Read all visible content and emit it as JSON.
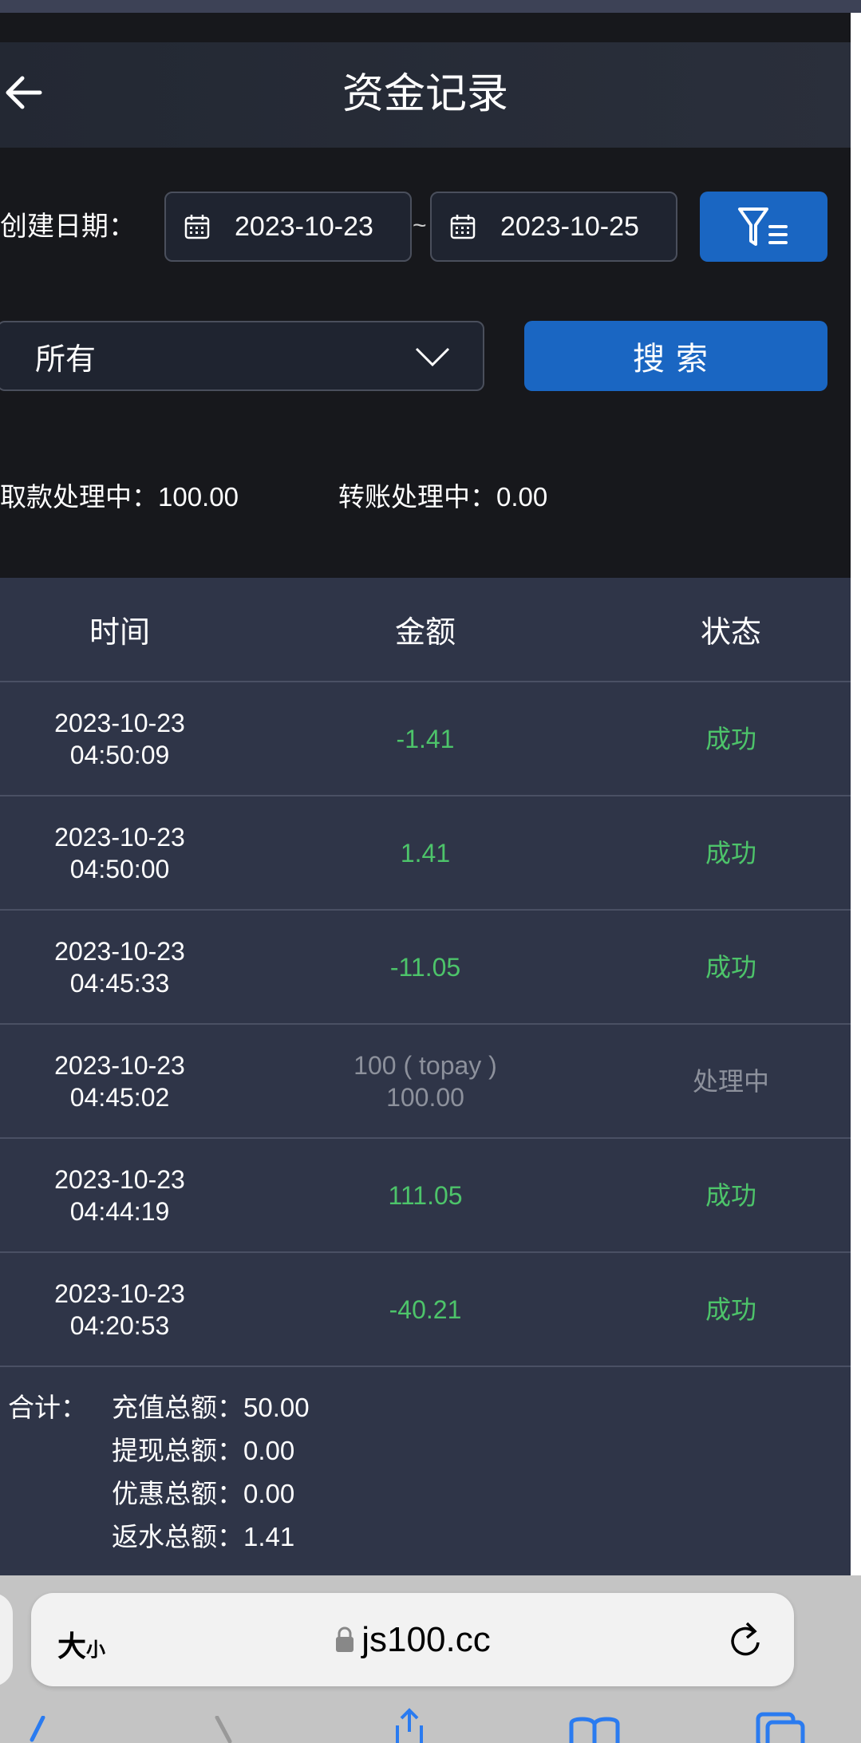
{
  "header": {
    "title": "资金记录",
    "back_icon": "arrow-left-icon"
  },
  "filters": {
    "date_label": "创建日期：",
    "start_date": "2023-10-23",
    "separator": "~",
    "end_date": "2023-10-25",
    "type_select": "所有",
    "search_label": "搜索"
  },
  "summary": {
    "withdraw_label": "取款处理中：",
    "withdraw_value": "100.00",
    "transfer_label": "转账处理中：",
    "transfer_value": "0.00"
  },
  "table": {
    "columns": [
      "时间",
      "金额",
      "状态"
    ],
    "rows": [
      {
        "date": "2023-10-23",
        "time": "04:50:09",
        "amount_note": "",
        "amount": "-1.41",
        "status": "成功",
        "status_type": "success"
      },
      {
        "date": "2023-10-23",
        "time": "04:50:00",
        "amount_note": "",
        "amount": "1.41",
        "status": "成功",
        "status_type": "success"
      },
      {
        "date": "2023-10-23",
        "time": "04:45:33",
        "amount_note": "",
        "amount": "-11.05",
        "status": "成功",
        "status_type": "success"
      },
      {
        "date": "2023-10-23",
        "time": "04:45:02",
        "amount_note": "100 ( topay )",
        "amount": "100.00",
        "status": "处理中",
        "status_type": "pending"
      },
      {
        "date": "2023-10-23",
        "time": "04:44:19",
        "amount_note": "",
        "amount": "111.05",
        "status": "成功",
        "status_type": "success"
      },
      {
        "date": "2023-10-23",
        "time": "04:20:53",
        "amount_note": "",
        "amount": "-40.21",
        "status": "成功",
        "status_type": "success"
      }
    ]
  },
  "totals": {
    "label": "合计：",
    "items": [
      {
        "label": "充值总额：",
        "value": "50.00"
      },
      {
        "label": "提现总额：",
        "value": "0.00"
      },
      {
        "label": "优惠总额：",
        "value": "0.00"
      },
      {
        "label": "返水总额：",
        "value": "1.41"
      }
    ]
  },
  "browser": {
    "text_size": "大",
    "text_size_small": "小",
    "url": "js100.cc"
  },
  "colors": {
    "accent": "#1a66c2",
    "success": "#4dc46a",
    "pending": "#8d919c",
    "table_bg": "#2f3548"
  }
}
